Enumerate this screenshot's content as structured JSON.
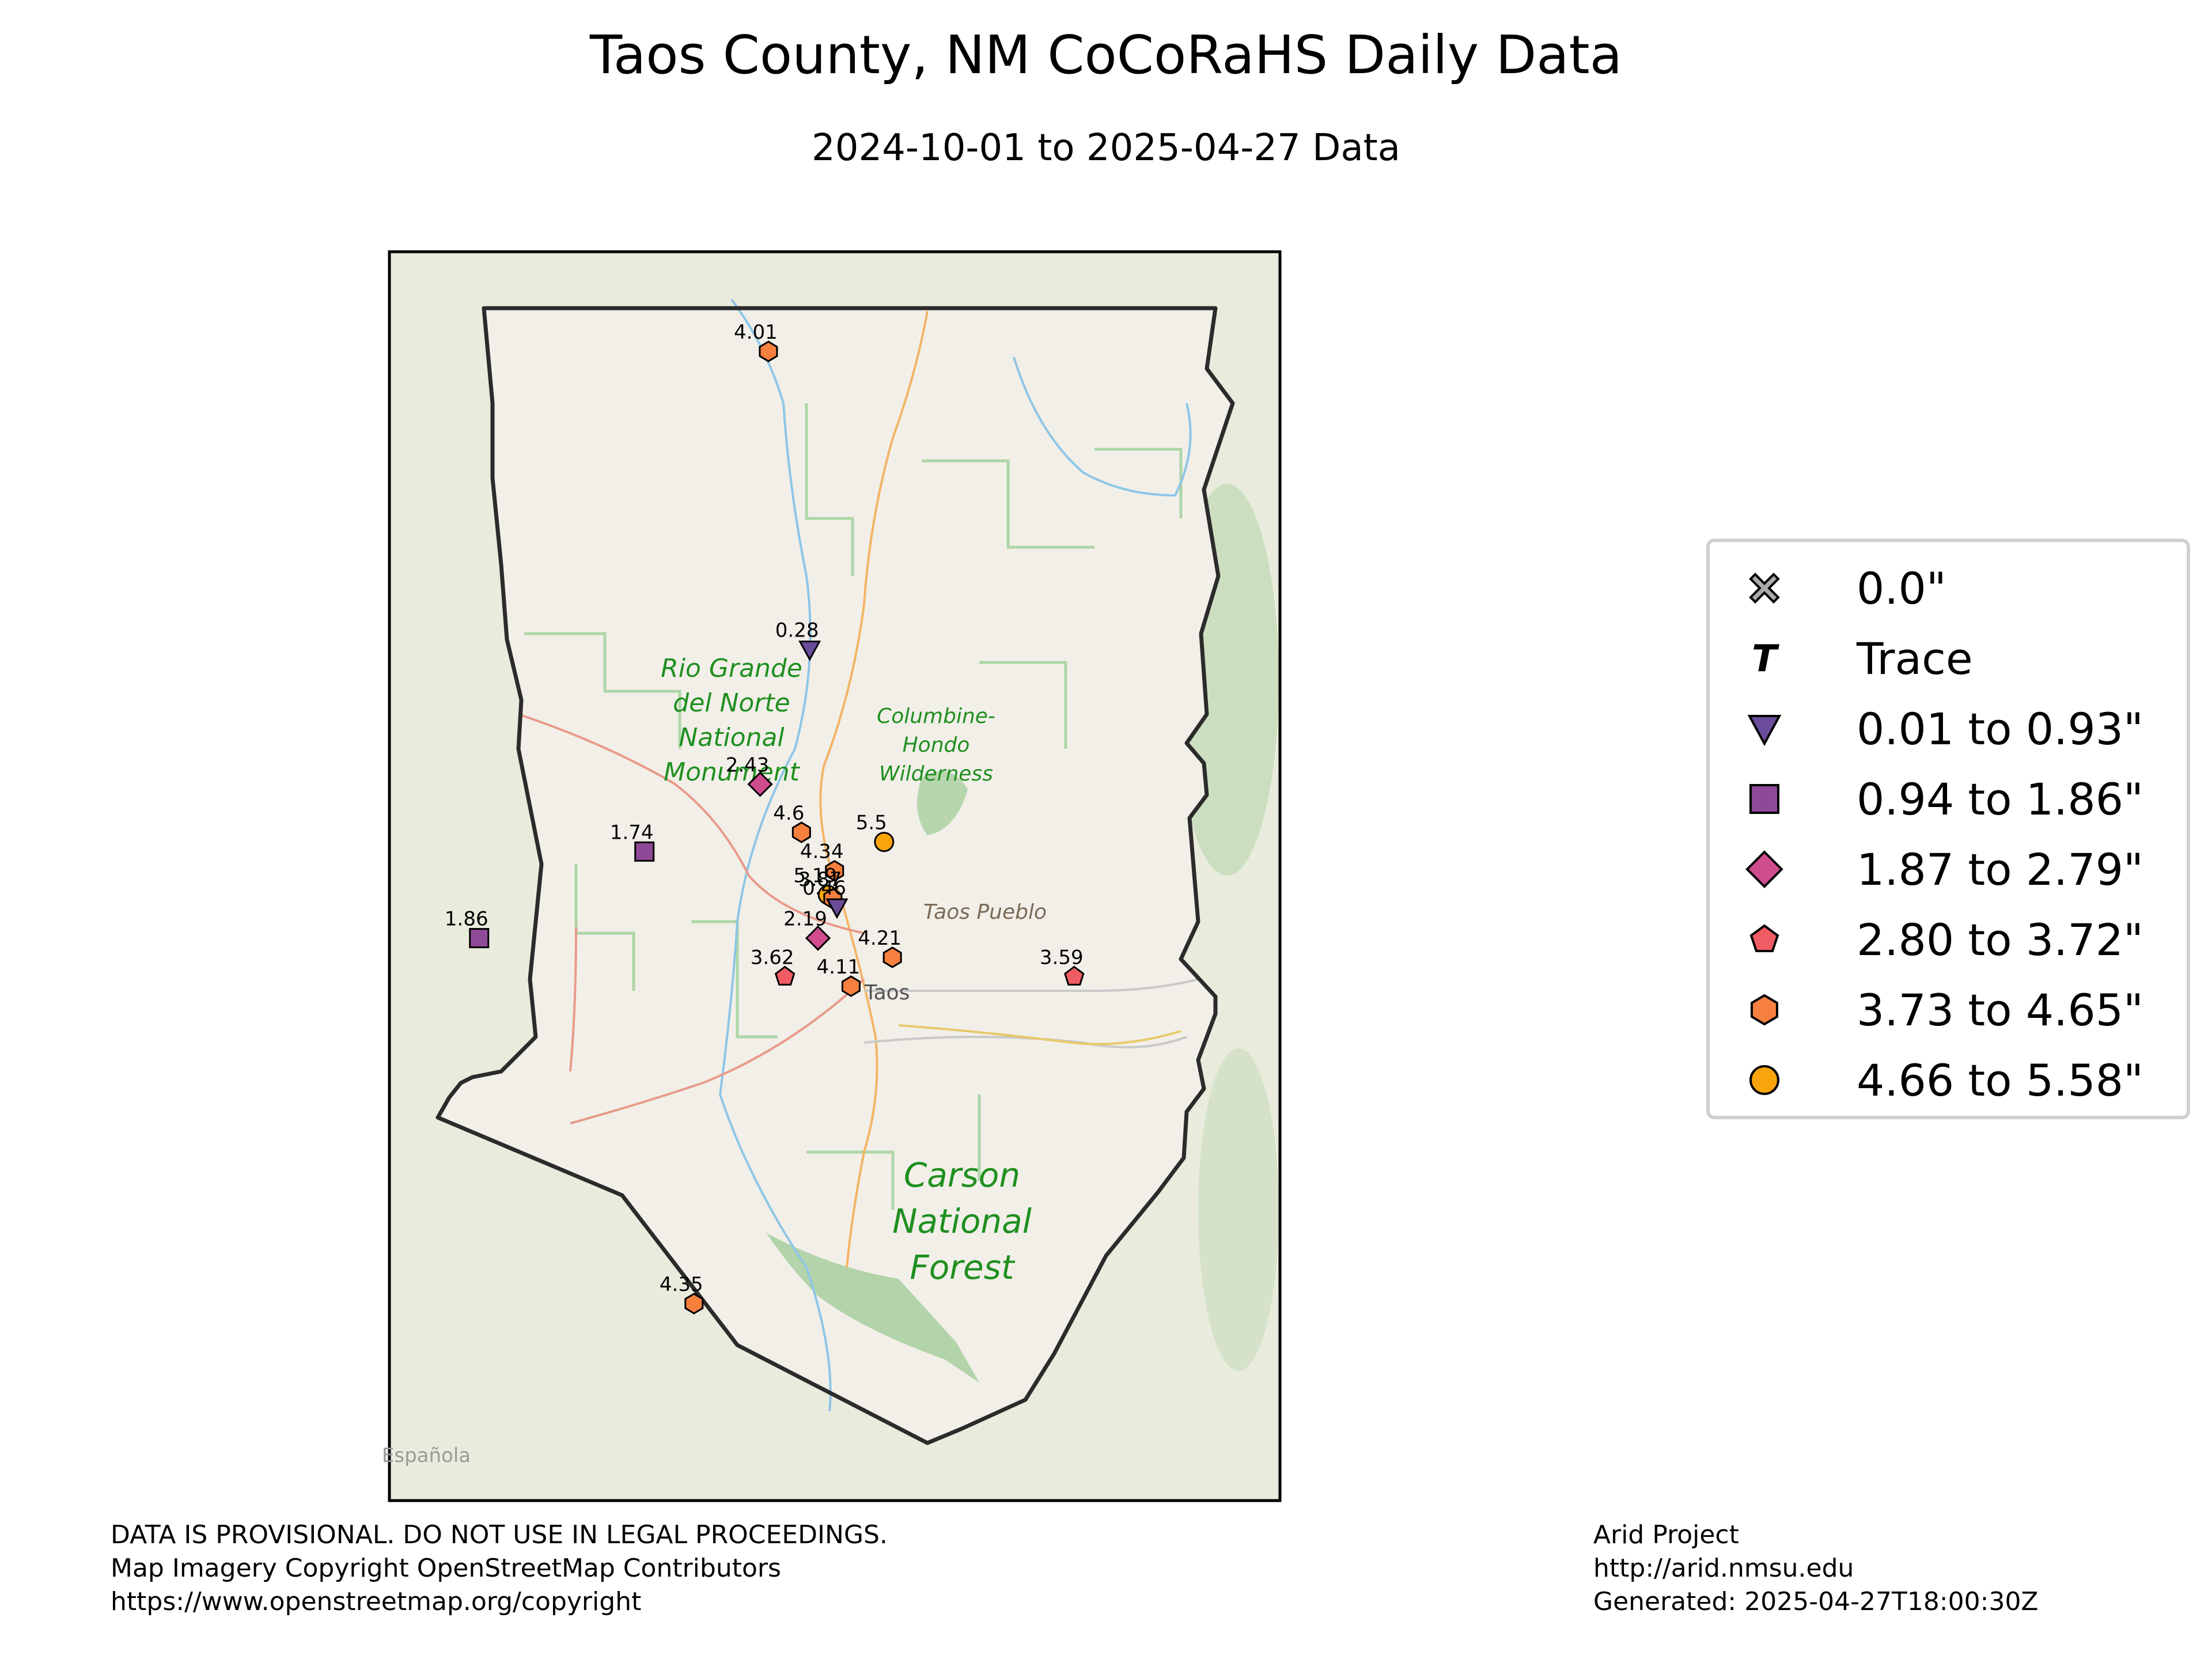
{
  "title": "Taos County, NM CoCoRaHS Daily Data",
  "subtitle": "2024-10-01 to 2025-04-27 Data",
  "map_labels": {
    "rio_grande_1": "Rio Grande",
    "rio_grande_2": "del Norte",
    "rio_grande_3": "National",
    "rio_grande_4": "Monument",
    "columbine_1": "Columbine-",
    "columbine_2": "Hondo",
    "columbine_3": "Wilderness",
    "taos_pueblo": "Taos Pueblo",
    "taos": "Taos",
    "carson_1": "Carson",
    "carson_2": "National",
    "carson_3": "Forest",
    "espanola": "Española"
  },
  "stations": [
    {
      "value": "4.01",
      "class": "hex",
      "lat": 36.99,
      "lon": -105.72
    },
    {
      "value": "0.28",
      "class": "tri",
      "lat": 36.68,
      "lon": -105.67
    },
    {
      "value": "2.43",
      "class": "diamond",
      "lat": 36.54,
      "lon": -105.73
    },
    {
      "value": "4.6",
      "class": "hex",
      "lat": 36.49,
      "lon": -105.68
    },
    {
      "value": "5.5",
      "class": "circle",
      "lat": 36.48,
      "lon": -105.58
    },
    {
      "value": "1.74",
      "class": "square",
      "lat": 36.47,
      "lon": -105.87
    },
    {
      "value": "4.34",
      "class": "hex",
      "lat": 36.45,
      "lon": -105.64
    },
    {
      "value": "5.19",
      "class": "circle",
      "lat": 36.425,
      "lon": -105.648
    },
    {
      "value": "3.87",
      "class": "hex",
      "lat": 36.421,
      "lon": -105.642
    },
    {
      "value": "0.46",
      "class": "tri",
      "lat": 36.412,
      "lon": -105.637
    },
    {
      "value": "1.86",
      "class": "square",
      "lat": 36.38,
      "lon": -106.07
    },
    {
      "value": "2.19",
      "class": "diamond",
      "lat": 36.38,
      "lon": -105.66
    },
    {
      "value": "4.21",
      "class": "hex",
      "lat": 36.36,
      "lon": -105.57
    },
    {
      "value": "3.62",
      "class": "pent",
      "lat": 36.34,
      "lon": -105.7
    },
    {
      "value": "4.11",
      "class": "hex",
      "lat": 36.33,
      "lon": -105.62
    },
    {
      "value": "3.59",
      "class": "pent",
      "lat": 36.34,
      "lon": -105.35
    },
    {
      "value": "4.35",
      "class": "hex",
      "lat": 36.0,
      "lon": -105.81
    }
  ],
  "legend": [
    {
      "label": "0.0\"",
      "icon": "x-icon",
      "color": "#aaaaaa"
    },
    {
      "label": "Trace",
      "icon": "t-icon",
      "color": "#000000"
    },
    {
      "label": "0.01 to 0.93\"",
      "icon": "triangle-down-icon",
      "color": "#6b4c9a"
    },
    {
      "label": "0.94 to 1.86\"",
      "icon": "square-icon",
      "color": "#8e4a97"
    },
    {
      "label": "1.87 to 2.79\"",
      "icon": "diamond-icon",
      "color": "#cf4c8f"
    },
    {
      "label": "2.80 to 3.72\"",
      "icon": "pentagon-icon",
      "color": "#f05c64"
    },
    {
      "label": "3.73 to 4.65\"",
      "icon": "hexagon-icon",
      "color": "#f7803f"
    },
    {
      "label": "4.66 to 5.58\"",
      "icon": "circle-icon",
      "color": "#f9a40a"
    }
  ],
  "footer_left": [
    "DATA IS PROVISIONAL. DO NOT USE IN LEGAL PROCEEDINGS.",
    "Map Imagery Copyright OpenStreetMap Contributors",
    "https://www.openstreetmap.org/copyright"
  ],
  "footer_right": [
    "Arid Project",
    "http://arid.nmsu.edu",
    "Generated: 2025-04-27T18:00:30Z"
  ]
}
